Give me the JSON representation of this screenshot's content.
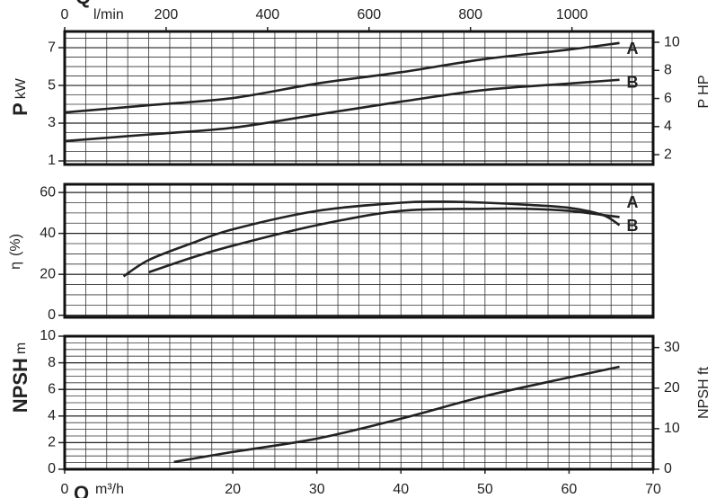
{
  "chart_data": [
    {
      "type": "line",
      "ylabel": "P",
      "ylabel_unit": "kW",
      "y2label": "P HP",
      "x2label": "Q",
      "x2label_unit": "l/min",
      "xlim": [
        0,
        70
      ],
      "ylim": [
        0.81,
        7.86
      ],
      "yticks": [
        1,
        3,
        5,
        7
      ],
      "y2lim": [
        1.3,
        10.77
      ],
      "y2ticks": [
        2,
        4,
        6,
        8,
        10
      ],
      "x2lim": [
        0,
        1160
      ],
      "x2ticks": [
        0,
        200,
        400,
        600,
        800,
        1000
      ],
      "grid": true,
      "series": [
        {
          "name": "A",
          "color": "#222222",
          "x": [
            0,
            10,
            20,
            30,
            40,
            50,
            60,
            66
          ],
          "values": [
            3.57,
            3.95,
            4.33,
            5.1,
            5.7,
            6.4,
            6.9,
            7.25
          ]
        },
        {
          "name": "B",
          "color": "#222222",
          "x": [
            0,
            10,
            20,
            30,
            40,
            50,
            60,
            66
          ],
          "values": [
            2.05,
            2.4,
            2.76,
            3.45,
            4.14,
            4.76,
            5.1,
            5.3
          ]
        }
      ]
    },
    {
      "type": "line",
      "ylabel": "η",
      "ylabel_unit": "(%)",
      "xlim": [
        0,
        70
      ],
      "ylim": [
        -1,
        64
      ],
      "yticks": [
        0,
        20,
        40,
        60
      ],
      "grid": true,
      "series": [
        {
          "name": "A",
          "color": "#222222",
          "x": [
            7,
            10,
            15,
            20,
            30,
            40,
            45,
            50,
            55,
            60,
            64,
            66
          ],
          "values": [
            19,
            27,
            35,
            42,
            51,
            55,
            55.5,
            55,
            54,
            52.5,
            49,
            44
          ]
        },
        {
          "name": "B",
          "color": "#222222",
          "x": [
            10,
            15,
            20,
            30,
            40,
            50,
            55,
            60,
            64,
            66
          ],
          "values": [
            21,
            28,
            34,
            44,
            51,
            52,
            52,
            51,
            49,
            48
          ]
        }
      ]
    },
    {
      "type": "line",
      "ylabel": "NPSH",
      "ylabel_unit": "m",
      "y2label": "NPSH ft",
      "xlabel": "Q",
      "xlabel_unit": "m³/h",
      "xlim": [
        0,
        70
      ],
      "xticks": [
        0,
        20,
        30,
        40,
        50,
        60,
        70
      ],
      "ylim": [
        0,
        10
      ],
      "yticks": [
        0,
        2,
        4,
        6,
        8,
        10
      ],
      "y2lim": [
        0,
        32.8
      ],
      "y2ticks": [
        0,
        10,
        20,
        30
      ],
      "grid": true,
      "series": [
        {
          "color": "#222222",
          "x": [
            13,
            20,
            30,
            40,
            50,
            60,
            66
          ],
          "values": [
            0.55,
            1.3,
            2.3,
            3.8,
            5.5,
            6.9,
            7.7
          ]
        }
      ]
    }
  ]
}
